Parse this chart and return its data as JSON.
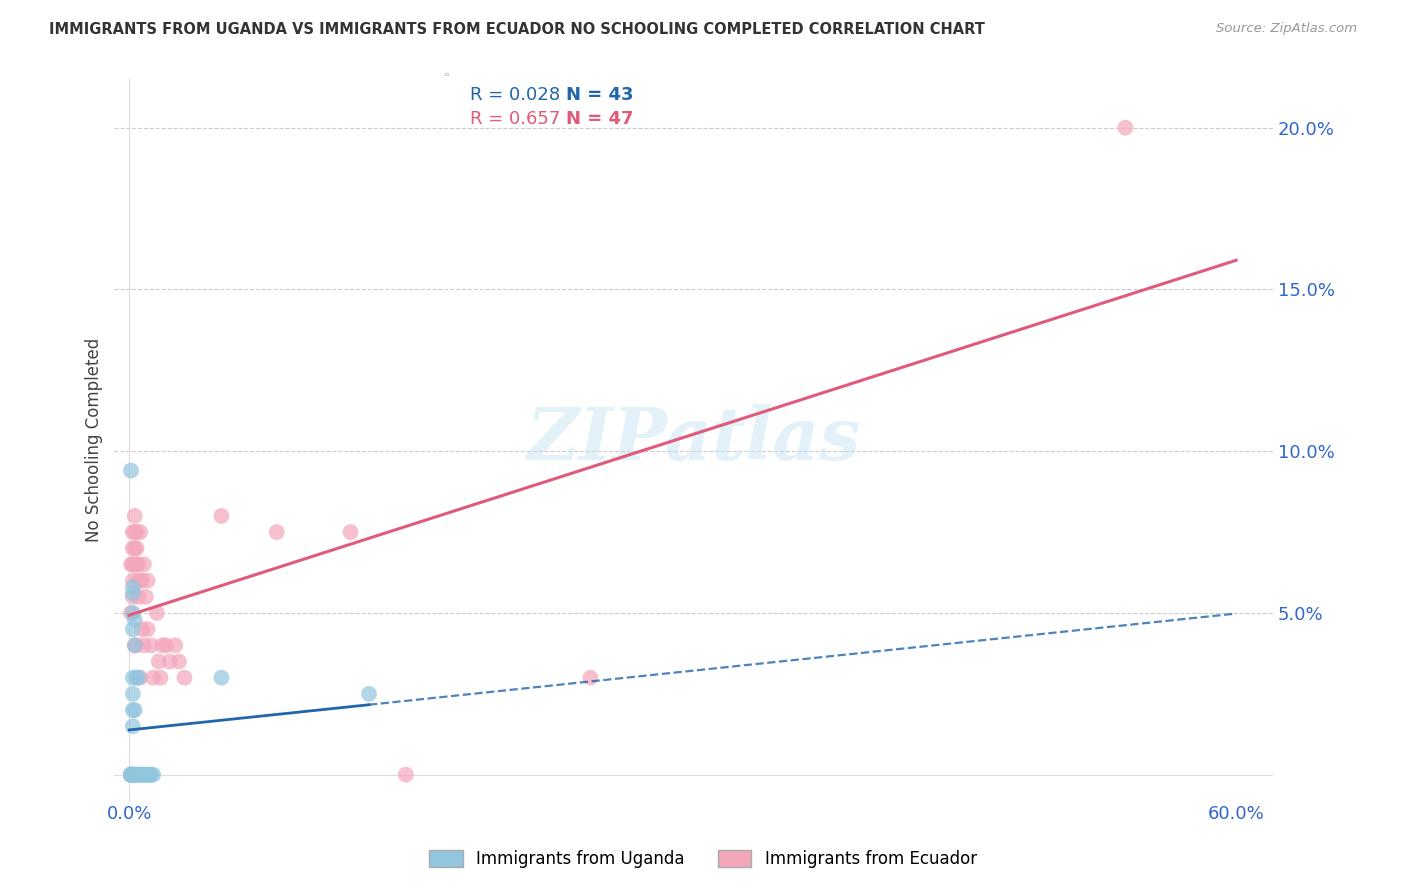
{
  "title": "IMMIGRANTS FROM UGANDA VS IMMIGRANTS FROM ECUADOR NO SCHOOLING COMPLETED CORRELATION CHART",
  "source": "Source: ZipAtlas.com",
  "ylabel": "No Schooling Completed",
  "watermark_text": "ZIPatlas",
  "xlim": [
    -0.008,
    0.62
  ],
  "ylim": [
    -0.008,
    0.215
  ],
  "xticks": [
    0.0,
    0.1,
    0.2,
    0.3,
    0.4,
    0.5,
    0.6
  ],
  "xtick_labels": [
    "0.0%",
    "",
    "",
    "",
    "",
    "",
    "60.0%"
  ],
  "yticks_right": [
    0.05,
    0.1,
    0.15,
    0.2
  ],
  "ytick_labels_right": [
    "5.0%",
    "10.0%",
    "15.0%",
    "20.0%"
  ],
  "legend_R_uganda": "R = 0.028",
  "legend_N_uganda": "N = 43",
  "legend_R_ecuador": "R = 0.657",
  "legend_N_ecuador": "N = 47",
  "legend_label_uganda": "Immigrants from Uganda",
  "legend_label_ecuador": "Immigrants from Ecuador",
  "uganda_color": "#92c5de",
  "ecuador_color": "#f4a6bb",
  "uganda_trend_color": "#2166ac",
  "ecuador_trend_color": "#e05a7a",
  "uganda_trend_R": 0.028,
  "ecuador_trend_R": 0.657,
  "background_color": "#ffffff",
  "grid_color": "#cccccc",
  "title_color": "#333333",
  "source_color": "#999999",
  "tick_color": "#3366cc",
  "uganda_x": [
    0.001,
    0.001,
    0.001,
    0.001,
    0.001,
    0.001,
    0.001,
    0.001,
    0.001,
    0.001,
    0.002,
    0.002,
    0.002,
    0.002,
    0.002,
    0.002,
    0.002,
    0.002,
    0.002,
    0.002,
    0.003,
    0.003,
    0.003,
    0.003,
    0.003,
    0.003,
    0.004,
    0.004,
    0.005,
    0.005,
    0.006,
    0.007,
    0.007,
    0.008,
    0.008,
    0.009,
    0.01,
    0.01,
    0.011,
    0.012,
    0.013,
    0.05,
    0.13
  ],
  "uganda_y": [
    0.094,
    0.0,
    0.0,
    0.0,
    0.0,
    0.0,
    0.0,
    0.0,
    0.0,
    0.0,
    0.058,
    0.056,
    0.05,
    0.045,
    0.03,
    0.025,
    0.02,
    0.015,
    0.0,
    0.0,
    0.048,
    0.04,
    0.02,
    0.0,
    0.0,
    0.0,
    0.03,
    0.0,
    0.03,
    0.0,
    0.0,
    0.0,
    0.0,
    0.0,
    0.0,
    0.0,
    0.0,
    0.0,
    0.0,
    0.0,
    0.0,
    0.03,
    0.025
  ],
  "ecuador_x": [
    0.001,
    0.001,
    0.001,
    0.002,
    0.002,
    0.002,
    0.002,
    0.002,
    0.003,
    0.003,
    0.003,
    0.003,
    0.003,
    0.004,
    0.004,
    0.004,
    0.004,
    0.005,
    0.005,
    0.005,
    0.006,
    0.006,
    0.006,
    0.007,
    0.007,
    0.008,
    0.008,
    0.009,
    0.01,
    0.01,
    0.012,
    0.013,
    0.015,
    0.016,
    0.017,
    0.018,
    0.02,
    0.022,
    0.025,
    0.027,
    0.03,
    0.05,
    0.08,
    0.12,
    0.15,
    0.25,
    0.54
  ],
  "ecuador_y": [
    0.05,
    0.065,
    0.0,
    0.075,
    0.07,
    0.065,
    0.06,
    0.055,
    0.08,
    0.075,
    0.07,
    0.065,
    0.04,
    0.075,
    0.07,
    0.065,
    0.04,
    0.065,
    0.06,
    0.055,
    0.075,
    0.06,
    0.03,
    0.06,
    0.045,
    0.065,
    0.04,
    0.055,
    0.06,
    0.045,
    0.04,
    0.03,
    0.05,
    0.035,
    0.03,
    0.04,
    0.04,
    0.035,
    0.04,
    0.035,
    0.03,
    0.08,
    0.075,
    0.075,
    0.0,
    0.03,
    0.2
  ],
  "trend_solid_end_uganda": 0.13,
  "trend_dashed_start_uganda": 0.13
}
